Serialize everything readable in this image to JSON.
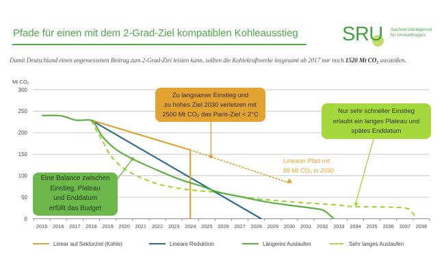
{
  "header": {
    "title": "Pfade für einen mit dem 2-Grad-Ziel kompatiblen Kohleausstieg",
    "logo": {
      "letters": "SRU",
      "tagline_line1": "Sachverständigenrat",
      "tagline_line2": "für Umweltfragen"
    }
  },
  "subtitle": {
    "prefix": "Damit Deutschland einen angemessenen Beitrag zum 2-Grad-Ziel leisten kann, sollten die Kohlekraftwerke insgesamt ab 2017 nur noch ",
    "highlight": "1520 Mt CO₂",
    "suffix": " ausstoßen."
  },
  "colors": {
    "brand_green": "#4ea548",
    "orange": "#e1a234",
    "blue": "#2e6a8e",
    "green": "#5cae3e",
    "lime": "#a3d638",
    "grid": "#c9c9c9"
  },
  "chart_data": {
    "type": "line",
    "title": "Pfade für einen mit dem 2-Grad-Ziel kompatiblen Kohleausstieg",
    "xlabel": "",
    "ylabel": "Mt CO₂",
    "ylim": [
      0,
      300
    ],
    "yticks": [
      0,
      50,
      100,
      150,
      200,
      250,
      300
    ],
    "xlim": [
      2015,
      2038
    ],
    "categories": [
      "2015",
      "2016",
      "2017",
      "2018",
      "2019",
      "2020",
      "2021",
      "2022",
      "2023",
      "2024",
      "2025",
      "2026",
      "2027",
      "2028",
      "2029",
      "2030",
      "2031",
      "2032",
      "2033",
      "2034",
      "2035",
      "2036",
      "2037",
      "2038"
    ],
    "grid": true,
    "legend_position": "bottom",
    "series": [
      {
        "name": "Linear auf Sektorziel (Kohle)",
        "color": "#e1a234",
        "style": "solid",
        "smooth": false,
        "points": [
          [
            2018,
            229
          ],
          [
            2024,
            160
          ],
          [
            2024,
            0
          ]
        ]
      },
      {
        "name": "Lineare Reduktion",
        "color": "#2e6a8e",
        "style": "solid",
        "smooth": false,
        "points": [
          [
            2018,
            229
          ],
          [
            2028.3,
            0
          ]
        ]
      },
      {
        "name": "Längeres Auslaufen",
        "color": "#5cae3e",
        "style": "solid",
        "smooth": true,
        "points": [
          [
            2015,
            240
          ],
          [
            2016,
            240
          ],
          [
            2016.5,
            236
          ],
          [
            2017.1,
            229
          ],
          [
            2018,
            229
          ],
          [
            2018.3,
            215
          ],
          [
            2018.7,
            190
          ],
          [
            2019.5,
            161
          ],
          [
            2020.5,
            139
          ],
          [
            2022,
            113
          ],
          [
            2023.4,
            91
          ],
          [
            2024.5,
            78
          ],
          [
            2025.7,
            62
          ],
          [
            2027.1,
            51
          ],
          [
            2028.5,
            40
          ],
          [
            2029.9,
            32
          ],
          [
            2031.5,
            24
          ],
          [
            2032.1,
            19
          ],
          [
            2032.7,
            0
          ]
        ]
      },
      {
        "name": "Sehr langes Auslaufen",
        "color": "#a3d638",
        "style": "dashed",
        "smooth": true,
        "points": [
          [
            2018,
            229
          ],
          [
            2018.3,
            206
          ],
          [
            2018.7,
            180
          ],
          [
            2019.1,
            151
          ],
          [
            2019.65,
            127
          ],
          [
            2020.35,
            108
          ],
          [
            2021.3,
            91
          ],
          [
            2022.4,
            77
          ],
          [
            2024,
            67
          ],
          [
            2025.7,
            61
          ],
          [
            2027.5,
            49
          ],
          [
            2029.9,
            40
          ],
          [
            2032.9,
            32
          ],
          [
            2034,
            28
          ],
          [
            2036.8,
            26
          ],
          [
            2037.4,
            16
          ],
          [
            2037.7,
            0
          ]
        ]
      }
    ],
    "annotations": {
      "linear_path": {
        "lines": [
          "Linearer Pfad mit",
          "88 Mt CO₂ in 2030"
        ],
        "from": [
          2024,
          160
        ],
        "to": [
          2030,
          88
        ],
        "color": "#e1a234"
      },
      "orange_callout": {
        "lines": [
          "Zu langsamer Einstieg und",
          "zu hohes Ziel 2030 verletzen mit",
          "2500 Mt CO₂ das Paris-Ziel < 2°C"
        ],
        "target": [
          2025.25,
          145
        ],
        "color": "#e2a333"
      },
      "green_callout": {
        "lines": [
          "Eine Balance zwischen",
          "Einstieg, Plateau",
          "und Enddatum",
          "erfüllt das Budget"
        ],
        "target": [
          2020.5,
          139
        ],
        "color": "#6cb84a"
      },
      "lime_callout": {
        "lines": [
          "Nur sehr schneller Einstieg",
          "erlaubt ein langes Plateau und",
          "spätes Enddatum"
        ],
        "target": [
          2034,
          28
        ],
        "color": "#a4d83b"
      }
    }
  }
}
